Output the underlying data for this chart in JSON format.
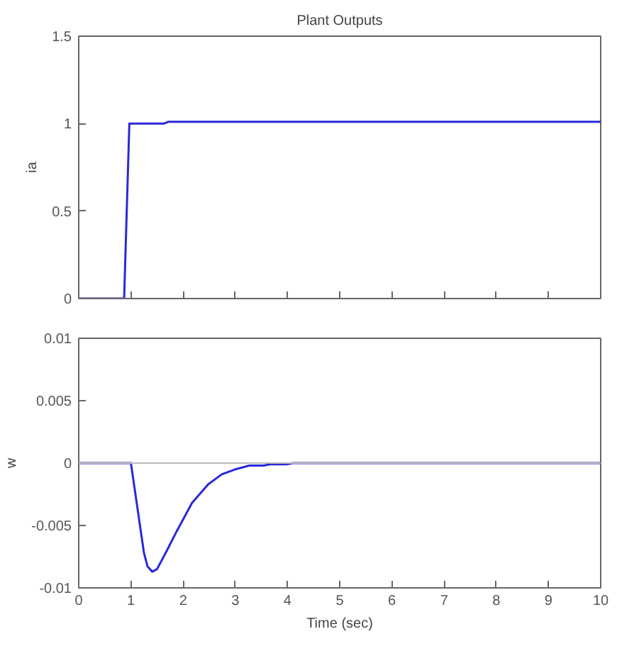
{
  "chart_data": [
    {
      "type": "line",
      "title": "Plant Outputs",
      "ylabel": "ia",
      "xlim": [
        0,
        10
      ],
      "ylim": [
        0,
        1.5
      ],
      "xticks": [
        0,
        1,
        2,
        3,
        4,
        5,
        6,
        7,
        8,
        9,
        10
      ],
      "yticks": [
        0,
        0.5,
        1,
        1.5
      ],
      "tick_labels": "y",
      "grid": false,
      "series": [
        {
          "color": "#2a2ad8",
          "x": [
            0,
            0.87,
            0.97,
            1.63,
            1.71,
            10
          ],
          "values": [
            0,
            0,
            1.0,
            1.0,
            1.01,
            1.01
          ]
        }
      ]
    },
    {
      "type": "line",
      "xlabel": "Time (sec)",
      "ylabel": "w",
      "xlim": [
        0,
        10
      ],
      "ylim": [
        -0.01,
        0.01
      ],
      "xticks": [
        0,
        1,
        2,
        3,
        4,
        5,
        6,
        7,
        8,
        9,
        10
      ],
      "yticks": [
        -0.01,
        -0.005,
        0,
        0.005,
        0.01
      ],
      "grid": false,
      "ref_lines": [
        {
          "axis": "y",
          "value": 0,
          "color": "#bbbbbb"
        }
      ],
      "series": [
        {
          "color": "#2a2ad8",
          "x": [
            0,
            1.0,
            1.25,
            1.32,
            1.41,
            1.5,
            1.69,
            1.86,
            2.17,
            2.48,
            2.74,
            3.0,
            3.27,
            3.54,
            3.67,
            3.98,
            4.1,
            10
          ],
          "values": [
            0,
            0,
            -0.0072,
            -0.0083,
            -0.0087,
            -0.0085,
            -0.007,
            -0.0056,
            -0.0032,
            -0.0017,
            -0.0009,
            -0.0005,
            -0.0002,
            -0.0002,
            -0.0001,
            -0.0001,
            0,
            0
          ]
        }
      ]
    }
  ]
}
